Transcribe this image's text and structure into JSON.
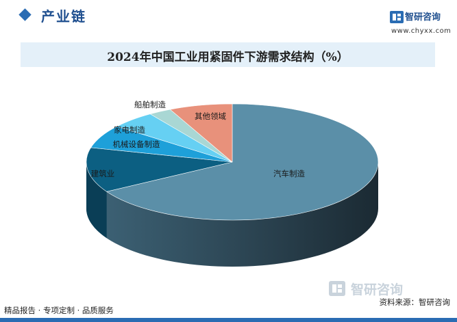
{
  "header": {
    "section_title": "产业链",
    "brand_name": "智研咨询",
    "brand_url": "www.chyxx.com"
  },
  "chart_data": {
    "type": "pie",
    "title": "2024年中国工业用紧固件下游需求结构（%）",
    "slices": [
      {
        "label": "汽车制造",
        "value": 66.5,
        "color": "#5b8fa8"
      },
      {
        "label": "建筑业",
        "value": 12.5,
        "color": "#0c5f82"
      },
      {
        "label": "机械设备制造",
        "value": 6.5,
        "color": "#1ea0d9"
      },
      {
        "label": "家电制造",
        "value": 5.0,
        "color": "#66d0f3"
      },
      {
        "label": "船舶制造",
        "value": 2.5,
        "color": "#a9d7d4"
      },
      {
        "label": "其他领域",
        "value": 7.0,
        "color": "#e8917b"
      }
    ]
  },
  "footer": {
    "left_text": "精品报告 · 专项定制 · 品质服务",
    "source_text": "资料来源：智研咨询",
    "watermark_text": "智研咨询"
  }
}
